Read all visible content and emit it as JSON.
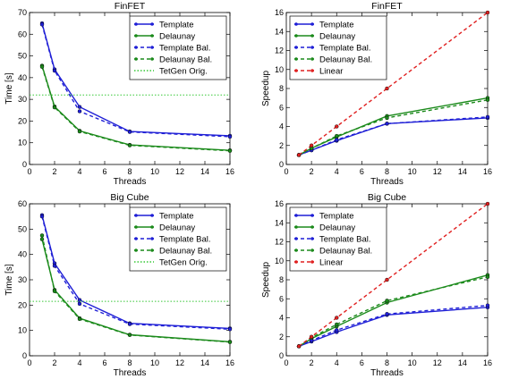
{
  "colors": {
    "template": "#1f1fd6",
    "delaunay": "#1b8a1b",
    "template_bal": "#1f1fd6",
    "delaunay_bal": "#1b8a1b",
    "tetgen": "#37c837",
    "linear": "#e02020"
  },
  "chart_data": [
    {
      "type": "line",
      "title": "FinFET",
      "xlabel": "Threads",
      "ylabel": "Time [s]",
      "xlim": [
        0,
        16
      ],
      "ylim": [
        0,
        70
      ],
      "xticks": [
        "0",
        "2",
        "4",
        "6",
        "8",
        "10",
        "12",
        "14",
        "16"
      ],
      "yticks": [
        "0",
        "10",
        "20",
        "30",
        "40",
        "50",
        "60",
        "70"
      ],
      "grid": false,
      "legend": "top-right",
      "x": [
        1,
        2,
        4,
        8,
        16
      ],
      "series": [
        {
          "name": "Template",
          "style": "solid",
          "marker": true,
          "color": "#1f1fd6",
          "values": [
            65.0,
            43.8,
            26.5,
            15.2,
            13.2
          ]
        },
        {
          "name": "Delaunay",
          "style": "solid",
          "marker": true,
          "color": "#1b8a1b",
          "values": [
            45.5,
            26.7,
            15.5,
            9.0,
            6.5
          ]
        },
        {
          "name": "Template Bal.",
          "style": "dashed",
          "marker": true,
          "color": "#1f1fd6",
          "values": [
            64.5,
            43.2,
            24.5,
            15.0,
            12.8
          ]
        },
        {
          "name": "Delaunay Bal.",
          "style": "dashed",
          "marker": true,
          "color": "#1b8a1b",
          "values": [
            45.0,
            26.3,
            15.2,
            8.8,
            6.3
          ]
        },
        {
          "name": "TetGen Orig.",
          "style": "dotted",
          "marker": false,
          "color": "#37c837",
          "hline": 32.0
        }
      ]
    },
    {
      "type": "line",
      "title": "FinFET",
      "xlabel": "Threads",
      "ylabel": "Speedup",
      "xlim": [
        0,
        16
      ],
      "ylim": [
        0,
        16
      ],
      "xticks": [
        "0",
        "2",
        "4",
        "6",
        "8",
        "10",
        "12",
        "14",
        "16"
      ],
      "yticks": [
        "0",
        "2",
        "4",
        "6",
        "8",
        "10",
        "12",
        "14",
        "16"
      ],
      "grid": false,
      "legend": "top-left",
      "x": [
        1,
        2,
        4,
        8,
        16
      ],
      "series": [
        {
          "name": "Template",
          "style": "solid",
          "marker": true,
          "color": "#1f1fd6",
          "values": [
            1.0,
            1.5,
            2.5,
            4.3,
            4.9
          ]
        },
        {
          "name": "Delaunay",
          "style": "solid",
          "marker": true,
          "color": "#1b8a1b",
          "values": [
            1.0,
            1.7,
            2.9,
            5.1,
            7.0
          ]
        },
        {
          "name": "Template Bal.",
          "style": "dashed",
          "marker": true,
          "color": "#1f1fd6",
          "values": [
            1.0,
            1.5,
            2.6,
            4.3,
            5.0
          ]
        },
        {
          "name": "Delaunay Bal.",
          "style": "dashed",
          "marker": true,
          "color": "#1b8a1b",
          "values": [
            1.0,
            1.7,
            3.0,
            4.9,
            6.8
          ]
        },
        {
          "name": "Linear",
          "style": "dashed",
          "marker": true,
          "color": "#e02020",
          "values": [
            1,
            2,
            4,
            8,
            16
          ]
        }
      ]
    },
    {
      "type": "line",
      "title": "Big Cube",
      "xlabel": "Threads",
      "ylabel": "Time [s]",
      "xlim": [
        0,
        16
      ],
      "ylim": [
        0,
        60
      ],
      "xticks": [
        "0",
        "2",
        "4",
        "6",
        "8",
        "10",
        "12",
        "14",
        "16"
      ],
      "yticks": [
        "0",
        "10",
        "20",
        "30",
        "40",
        "50",
        "60"
      ],
      "grid": false,
      "legend": "top-right",
      "x": [
        1,
        2,
        4,
        8,
        16
      ],
      "series": [
        {
          "name": "Template",
          "style": "solid",
          "marker": true,
          "color": "#1f1fd6",
          "values": [
            55.5,
            36.5,
            22.0,
            12.8,
            10.8
          ]
        },
        {
          "name": "Delaunay",
          "style": "solid",
          "marker": true,
          "color": "#1b8a1b",
          "values": [
            46.0,
            26.0,
            14.8,
            8.3,
            5.5
          ]
        },
        {
          "name": "Template Bal.",
          "style": "dashed",
          "marker": true,
          "color": "#1f1fd6",
          "values": [
            55.0,
            35.5,
            20.5,
            12.5,
            10.5
          ]
        },
        {
          "name": "Delaunay Bal.",
          "style": "dashed",
          "marker": true,
          "color": "#1b8a1b",
          "values": [
            47.5,
            25.5,
            14.5,
            8.2,
            5.4
          ]
        },
        {
          "name": "TetGen Orig.",
          "style": "dotted",
          "marker": false,
          "color": "#37c837",
          "hline": 21.5
        }
      ]
    },
    {
      "type": "line",
      "title": "Big Cube",
      "xlabel": "Threads",
      "ylabel": "Speedup",
      "xlim": [
        0,
        16
      ],
      "ylim": [
        0,
        16
      ],
      "xticks": [
        "0",
        "2",
        "4",
        "6",
        "8",
        "10",
        "12",
        "14",
        "16"
      ],
      "yticks": [
        "0",
        "2",
        "4",
        "6",
        "8",
        "10",
        "12",
        "14",
        "16"
      ],
      "grid": false,
      "legend": "top-left",
      "x": [
        1,
        2,
        4,
        8,
        16
      ],
      "series": [
        {
          "name": "Template",
          "style": "solid",
          "marker": true,
          "color": "#1f1fd6",
          "values": [
            1.0,
            1.5,
            2.5,
            4.3,
            5.1
          ]
        },
        {
          "name": "Delaunay",
          "style": "solid",
          "marker": true,
          "color": "#1b8a1b",
          "values": [
            1.0,
            1.8,
            3.1,
            5.6,
            8.5
          ]
        },
        {
          "name": "Template Bal.",
          "style": "dashed",
          "marker": true,
          "color": "#1f1fd6",
          "values": [
            1.0,
            1.6,
            2.7,
            4.4,
            5.3
          ]
        },
        {
          "name": "Delaunay Bal.",
          "style": "dashed",
          "marker": true,
          "color": "#1b8a1b",
          "values": [
            1.0,
            1.9,
            3.3,
            5.8,
            8.3
          ]
        },
        {
          "name": "Linear",
          "style": "dashed",
          "marker": true,
          "color": "#e02020",
          "values": [
            1,
            2,
            4,
            8,
            16
          ]
        }
      ]
    }
  ]
}
